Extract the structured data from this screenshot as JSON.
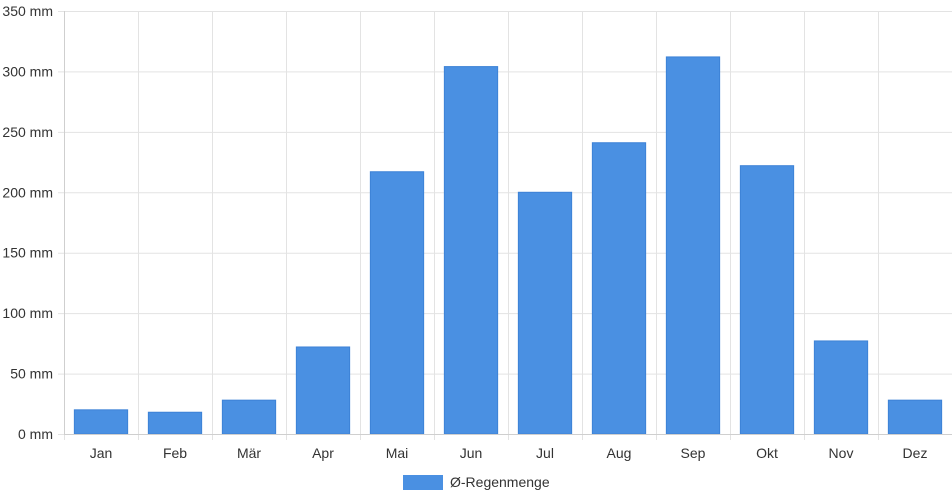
{
  "chart_data": {
    "type": "bar",
    "categories": [
      "Jan",
      "Feb",
      "Mär",
      "Apr",
      "Mai",
      "Jun",
      "Jul",
      "Aug",
      "Sep",
      "Okt",
      "Nov",
      "Dez"
    ],
    "series": [
      {
        "name": "Ø-Regenmenge",
        "values": [
          20,
          18,
          28,
          72,
          217,
          304,
          200,
          241,
          312,
          222,
          77,
          28
        ],
        "color": "#4a90e2"
      }
    ],
    "ylim": [
      0,
      350
    ],
    "yticks": [
      0,
      50,
      100,
      150,
      200,
      250,
      300,
      350
    ],
    "ytick_unit": " mm",
    "grid": true,
    "legend": "bottom-center"
  }
}
